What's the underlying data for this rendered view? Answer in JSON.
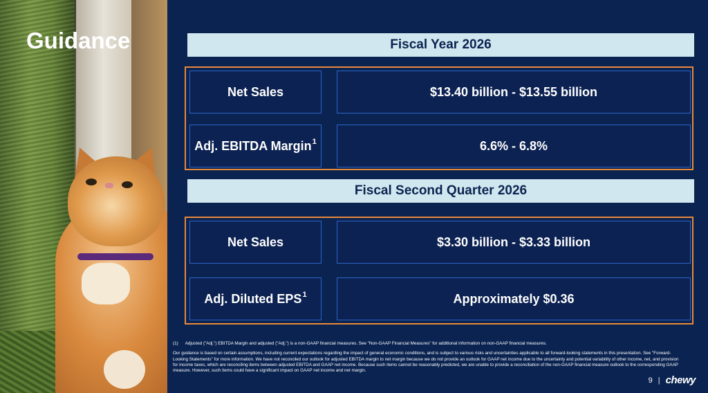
{
  "title": "Guidance",
  "sections": [
    {
      "header": "Fiscal Year 2026",
      "rows": [
        {
          "label": "Net Sales",
          "sup": "",
          "value": "$13.40 billion - $13.55 billion"
        },
        {
          "label": "Adj. EBITDA Margin",
          "sup": "1",
          "value": "6.6% - 6.8%"
        }
      ]
    },
    {
      "header": "Fiscal Second Quarter 2026",
      "rows": [
        {
          "label": "Net Sales",
          "sup": "",
          "value": "$3.30 billion - $3.33 billion"
        },
        {
          "label": "Adj. Diluted EPS",
          "sup": "1",
          "value": "Approximately $0.36"
        }
      ]
    }
  ],
  "footnotes": {
    "note1_marker": "(1)",
    "note1_text": "Adjusted (\"Adj.\") EBITDA Margin and adjusted (\"Adj.\") is a non-GAAP financial measures. See \"Non-GAAP Financial Measures\" for additional information on non-GAAP financial measures.",
    "disclaimer": "Our guidance is based on certain assumptions, including current expectations regarding the impact of general economic conditions, and is subject to various risks and uncertainties applicable to all forward-looking statements in this presentation. See \"Forward-Looking Statements\" for more information. We have not reconciled our outlook for adjusted EBITDA margin to net margin because we do not provide an outlook for GAAP net income due to the uncertainty and potential variability of other income, net, and provision for income taxes, which are reconciling items between adjusted EBITDA and GAAP net income. Because such items cannot be reasonably predicted, we are unable to provide a reconciliation of the non-GAAP financial measure outlook to the corresponding GAAP measure. However, such items could have a significant impact on GAAP net income and net margin."
  },
  "footer": {
    "page_number": "9",
    "separator": "|",
    "logo_text": "chewy"
  },
  "colors": {
    "background": "#0a2350",
    "header_bg": "#d1e7ef",
    "group_border": "#e98a3b",
    "cell_border": "#2d63c9"
  }
}
